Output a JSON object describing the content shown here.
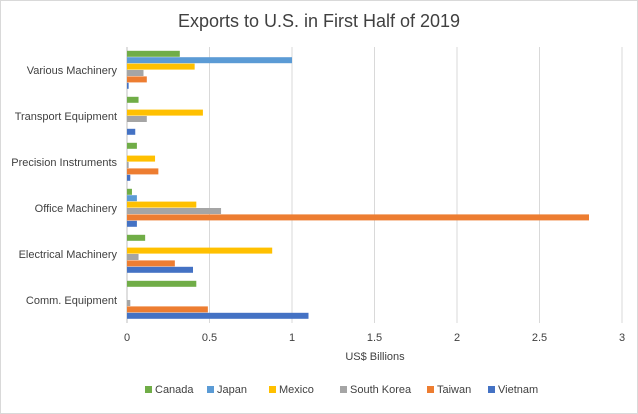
{
  "chart_data": {
    "type": "bar",
    "orientation": "horizontal",
    "title": "Exports to U.S. in First Half of 2019",
    "xlabel": "US$ Billions",
    "ylabel": "",
    "xlim": [
      0,
      3
    ],
    "xticks": [
      "0",
      "0.5",
      "1",
      "1.5",
      "2",
      "2.5",
      "3"
    ],
    "categories": [
      "Various Machinery",
      "Transport Equipment",
      "Precision Instruments",
      "Office Machinery",
      "Electrical Machinery",
      "Comm. Equipment"
    ],
    "series": [
      {
        "name": "Canada",
        "color": "#70ad47",
        "values": [
          0.32,
          0.07,
          0.06,
          0.03,
          0.11,
          0.42
        ]
      },
      {
        "name": "Japan",
        "color": "#5b9bd5",
        "values": [
          1.0,
          0.0,
          0.0,
          0.06,
          0.0,
          0.0
        ]
      },
      {
        "name": "Mexico",
        "color": "#ffc000",
        "values": [
          0.41,
          0.46,
          0.17,
          0.42,
          0.88,
          0.0
        ]
      },
      {
        "name": "South Korea",
        "color": "#a5a5a5",
        "values": [
          0.1,
          0.12,
          0.01,
          0.57,
          0.07,
          0.02
        ]
      },
      {
        "name": "Taiwan",
        "color": "#ed7d31",
        "values": [
          0.12,
          0.0,
          0.19,
          2.8,
          0.29,
          0.49
        ]
      },
      {
        "name": "Vietnam",
        "color": "#4472c4",
        "values": [
          0.01,
          0.05,
          0.02,
          0.06,
          0.4,
          1.1
        ]
      }
    ],
    "grid": true,
    "legend": "bottom"
  }
}
